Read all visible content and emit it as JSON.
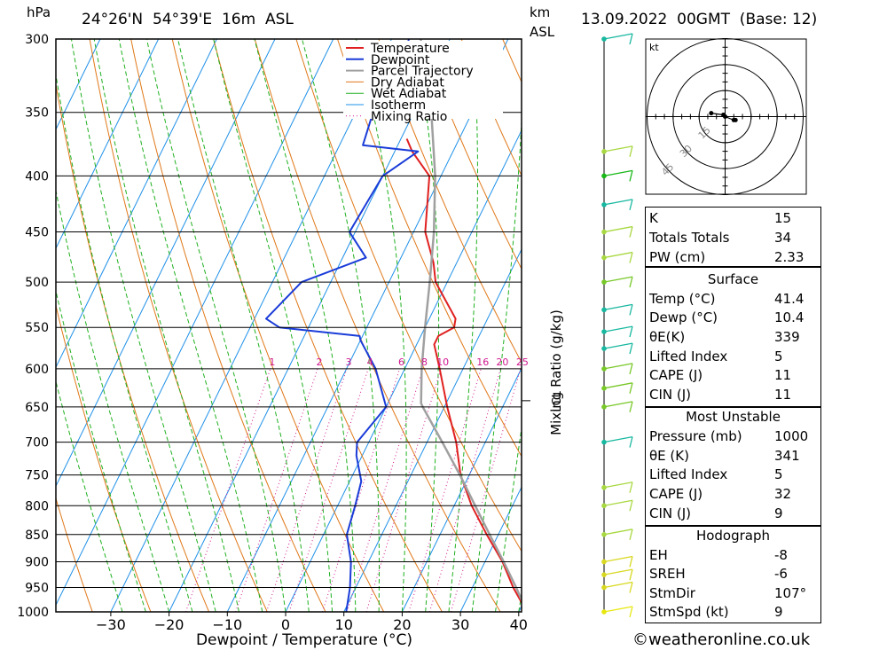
{
  "header": {
    "pressure_unit": "hPa",
    "location": "24°26'N  54°39'E  16m  ASL",
    "km_label": "km",
    "asl_label": "ASL",
    "datetime": "13.09.2022  00GMT  (Base: 12)"
  },
  "chart_data": {
    "type": "line",
    "xlabel": "Dewpoint / Temperature (°C)",
    "ylabel": "hPa",
    "right_axis_label": "Mixing Ratio (g/kg)",
    "lcl_label": "LCL",
    "skew_T": true,
    "x_ticks": [
      -30,
      -20,
      -10,
      0,
      10,
      20,
      30,
      40
    ],
    "pressure_levels": [
      300,
      350,
      400,
      450,
      500,
      550,
      600,
      650,
      700,
      750,
      800,
      850,
      900,
      950,
      1000
    ],
    "mixing_ratio_labels": [
      "1",
      "2",
      "3",
      "4",
      "6",
      "8",
      "10",
      "16",
      "20",
      "25"
    ],
    "legend": [
      "Temperature",
      "Dewpoint",
      "Parcel Trajectory",
      "Dry Adiabat",
      "Wet Adiabat",
      "Isotherm",
      "Mixing Ratio"
    ],
    "colors": {
      "temperature": "#e02020",
      "dewpoint": "#1a3cd8",
      "parcel": "#a0a0a0",
      "dry_adiabat": "#e07818",
      "wet_adiabat": "#20b020",
      "isotherm": "#1e90e8",
      "mixing_ratio": "#d01890"
    },
    "series": [
      {
        "name": "Temperature",
        "p": [
          1000,
          950,
          900,
          850,
          800,
          750,
          700,
          650,
          600,
          570,
          560,
          550,
          540,
          500,
          480,
          450,
          400,
          380,
          370
        ],
        "t": [
          41.4,
          37,
          33,
          28,
          23,
          18.5,
          15,
          10.5,
          6,
          3,
          3,
          5,
          4.5,
          -2,
          -4,
          -8,
          -12,
          -17,
          -19
        ]
      },
      {
        "name": "Dewpoint",
        "p": [
          1000,
          950,
          900,
          850,
          800,
          760,
          720,
          700,
          650,
          600,
          565,
          560,
          550,
          540,
          500,
          475,
          450,
          400,
          380,
          375,
          350,
          330,
          300
        ],
        "t": [
          10.4,
          9,
          7,
          4,
          3,
          2,
          -1,
          -2,
          0,
          -5,
          -10,
          -10.5,
          -25,
          -28,
          -25,
          -16,
          -21,
          -20,
          -16,
          -26,
          -27,
          -26,
          -27
        ]
      },
      {
        "name": "Parcel Trajectory",
        "p": [
          1000,
          950,
          900,
          850,
          800,
          750,
          700,
          650,
          645,
          600,
          550,
          500,
          450,
          400,
          350,
          300
        ],
        "t": [
          41.4,
          37.5,
          33.2,
          28.5,
          23.6,
          18.4,
          12.6,
          6.3,
          5.7,
          2.9,
          0,
          -3,
          -6.5,
          -11,
          -17,
          -25
        ]
      }
    ],
    "winds_kt": {
      "p": [
        300,
        380,
        400,
        425,
        450,
        475,
        500,
        530,
        555,
        575,
        600,
        625,
        650,
        700,
        770,
        800,
        850,
        900,
        925,
        950,
        1000
      ],
      "colors": [
        "#18b8a0",
        "#a8d840",
        "#18b818",
        "#18b8a0",
        "#a8d840",
        "#a8d840",
        "#78c828",
        "#18b8a0",
        "#18b8a0",
        "#18b8a0",
        "#78c828",
        "#78c828",
        "#78c828",
        "#18b8a0",
        "#a8d840",
        "#a8d840",
        "#a8d840",
        "#d8d820",
        "#d8d820",
        "#d8d820",
        "#e8e810"
      ]
    },
    "hodograph": {
      "unit": "kt",
      "ring_labels": [
        "15",
        "30",
        "45"
      ],
      "points_kt": [
        [
          -8,
          2
        ],
        [
          -1,
          1
        ],
        [
          0,
          0
        ],
        [
          5,
          -2
        ],
        [
          6,
          -2
        ]
      ]
    }
  },
  "indices": {
    "rows": [
      {
        "label": "K",
        "value": "15"
      },
      {
        "label": "Totals Totals",
        "value": "34"
      },
      {
        "label": "PW (cm)",
        "value": "2.33"
      }
    ]
  },
  "surface": {
    "title": "Surface",
    "rows": [
      {
        "label": "Temp (°C)",
        "value": "41.4"
      },
      {
        "label": "Dewp (°C)",
        "value": "10.4"
      },
      {
        "label": "θE(K)",
        "value": "339"
      },
      {
        "label": "Lifted Index",
        "value": "5"
      },
      {
        "label": "CAPE (J)",
        "value": "11"
      },
      {
        "label": "CIN (J)",
        "value": "11"
      }
    ]
  },
  "most_unstable": {
    "title": "Most Unstable",
    "rows": [
      {
        "label": "Pressure (mb)",
        "value": "1000"
      },
      {
        "label": "θE (K)",
        "value": "341"
      },
      {
        "label": "Lifted Index",
        "value": "5"
      },
      {
        "label": "CAPE (J)",
        "value": "32"
      },
      {
        "label": "CIN (J)",
        "value": "9"
      }
    ]
  },
  "hodograph_box": {
    "title": "Hodograph",
    "rows": [
      {
        "label": "EH",
        "value": "-8"
      },
      {
        "label": "SREH",
        "value": "-6"
      },
      {
        "label": "StmDir",
        "value": "107°"
      },
      {
        "label": "StmSpd (kt)",
        "value": "9"
      }
    ]
  },
  "footer": "©weatheronline.co.uk"
}
